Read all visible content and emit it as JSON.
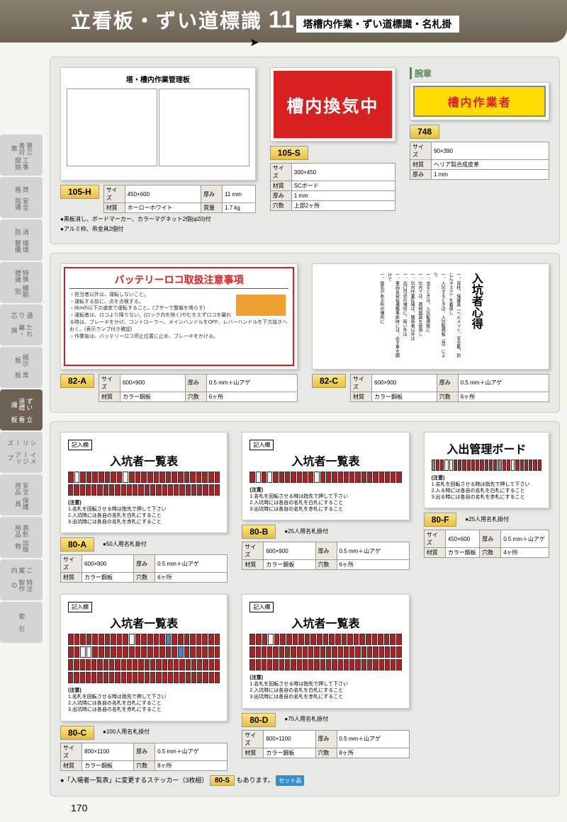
{
  "header": {
    "title": "立看板・ずい道標識",
    "number": "11",
    "subtitle": "塔槽内作業・ずい道標識・名札掛"
  },
  "sidebar": [
    {
      "a": "工事開始",
      "b": "第三者対策"
    },
    {
      "a": "安全指導",
      "b": "資　格"
    },
    {
      "a": "環境整備",
      "b": "消　防"
    },
    {
      "a": "機能別",
      "b": "特殊標識"
    },
    {
      "a": "たれ幕・旗",
      "b": "通り芯"
    },
    {
      "a": "黒　板",
      "b": "掲示板"
    },
    {
      "a": "立看板",
      "b": "ずい道標識",
      "active": true
    },
    {
      "a": "イメージアップ",
      "b": "シリーズ"
    },
    {
      "a": "保護具",
      "b": "安全用品"
    },
    {
      "a": "出版物",
      "b": "表彰用品"
    },
    {
      "a": "特注製作の",
      "b": "ご案内"
    },
    {
      "a": "索　引",
      "b": ""
    }
  ],
  "products": {
    "p105h": {
      "code": "105-H",
      "img_title": "塔・槽内作業管理板",
      "spec": {
        "size": "450×600",
        "thick": "11 mm",
        "material": "ホーローホワイト",
        "weight": "1.7 kg"
      },
      "notes": [
        "●黒板消し、ボードマーカー、カラーマグネット2個(φ20)付",
        "●アルミ枠、吊金具2個付"
      ]
    },
    "p105s": {
      "code": "105-S",
      "img_text": "槽内換気中",
      "spec": {
        "size": "300×450",
        "material": "SCボード",
        "thick": "1 mm",
        "holes": "上部2ヶ所"
      }
    },
    "p748": {
      "section_label": "腕章",
      "code": "748",
      "img_text": "槽内作業者",
      "spec": {
        "size": "90×390",
        "material": "ヘリア製合成皮革",
        "thick": "1 mm"
      }
    },
    "p82a": {
      "code": "82-A",
      "img_title": "バッテリーロコ取扱注意事項",
      "img_lines": [
        "・担当者以外は、運転しないこと。",
        "・運転する前に、点を点検する。",
        "・6km/h以下の速度で運転すること。(ブザーで警報を鳴らす)",
        "・運転者は、ロコより降りない。(ロック内を除く)やむをえずロコを離れる時は、ブレーキをかけ、コントローラー、メインハンドルをOFF、レバーハンドルを下方抜きへおく。(表示ランプ付き確認)",
        "・作業後は、バッテリーロコ停止位置に止め、ブレーキをかける。"
      ],
      "spec": {
        "size": "600×900",
        "thick": "0.5 mm＋山アゲ",
        "material": "カラー鋼板",
        "holes": "6ヶ所"
      }
    },
    "p82c": {
      "code": "82-C",
      "img_title": "入坑者心得",
      "spec": {
        "size": "600×900",
        "thick": "0.5 mm＋山アゲ",
        "material": "カラー鋼板",
        "holes": "6ヶ所"
      }
    },
    "p80a": {
      "code": "80-A",
      "title": "入坑者一覧表",
      "header_label": "記入欄",
      "bullet": "●50人用名札掛付",
      "note_title": "(注意)",
      "notes": [
        "1.名札を回転させる時は指先で押して下さい",
        "2.入坑時には各自の名札を白札にすること",
        "3.出坑時には各自の名札を赤札にすること"
      ],
      "spec": {
        "size": "600×900",
        "thick": "0.5 mm＋山アゲ",
        "material": "カラー鋼板",
        "holes": "6ヶ所"
      }
    },
    "p80b": {
      "code": "80-B",
      "title": "入坑者一覧表",
      "header_label": "記入欄",
      "bullet": "●25人用名札掛付",
      "note_title": "(注意)",
      "notes": [
        "1.名札を回転させる時は指先で押して下さい",
        "2.入坑時には各自の名札を白札にすること",
        "3.出坑時には各自の名札を赤札にすること"
      ],
      "spec": {
        "size": "600×900",
        "thick": "0.5 mm＋山アゲ",
        "material": "カラー鋼板",
        "holes": "6ヶ所"
      }
    },
    "p80f": {
      "code": "80-F",
      "title": "入出管理ボード",
      "bullet": "●25人用名札掛付",
      "note_title": "(注意)",
      "notes": [
        "1.名札を回転させる時は指先で押して下さい",
        "2.入る時には各自の名札を白札にすること",
        "3.出る時には各自の名札を赤札にすること"
      ],
      "spec": {
        "size": "450×600",
        "thick": "0.5 mm＋山アゲ",
        "material": "カラー鋼板",
        "holes": "4ヶ所"
      }
    },
    "p80c": {
      "code": "80-C",
      "title": "入坑者一覧表",
      "header_label": "記入欄",
      "bullet": "●100人用名札掛付",
      "note_title": "(注意)",
      "notes": [
        "1.名札を回転させる時は指先で押して下さい",
        "2.入坑時には各自の名札を白札にすること",
        "3.出坑時には各自の名札を赤札にすること"
      ],
      "spec": {
        "size": "800×1100",
        "thick": "0.5 mm＋山アゲ",
        "material": "カラー鋼板",
        "holes": "8ヶ所"
      }
    },
    "p80d": {
      "code": "80-D",
      "title": "入坑者一覧表",
      "header_label": "記入欄",
      "bullet": "●75人用名札掛付",
      "note_title": "(注意)",
      "notes": [
        "1.名札を回転させる時は指先で押して下さい",
        "2.入坑時には各自の名札を白札にすること",
        "3.出坑時には各自の名札を赤札にすること"
      ],
      "spec": {
        "size": "800×1100",
        "thick": "0.5 mm＋山アゲ",
        "material": "カラー鋼板",
        "holes": "8ヶ所"
      }
    }
  },
  "footer": {
    "text_a": "●「入場者一覧表」に変更するステッカー（3枚組）",
    "code": "80-S",
    "text_b": "もあります。",
    "set_label": "セット品"
  },
  "page_number": "170",
  "spec_labels": {
    "size": "サイズ",
    "thick": "厚み",
    "material": "材質",
    "weight": "質量",
    "holes": "穴数"
  },
  "colors": {
    "red": "#d92020",
    "yellow": "#ffdd00",
    "badge_top": "#ffe680",
    "badge_bot": "#e6c040",
    "header_top": "#8a8070",
    "header_bot": "#6b6254",
    "section_bg": "#e8e8e4",
    "slot_red": "#b02020",
    "slot_white": "#f0f0f0",
    "slot_blue": "#5080c0",
    "slot_gray": "#888"
  }
}
